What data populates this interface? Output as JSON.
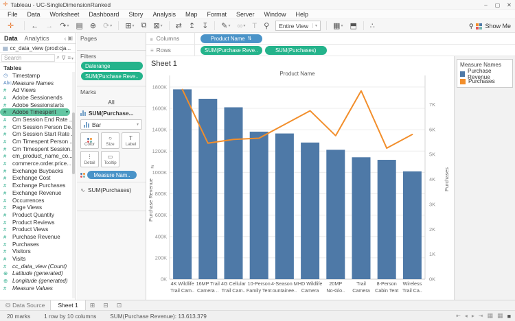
{
  "window": {
    "title": "Tableau - UC-SingleDimensionRanked"
  },
  "menu": {
    "items": [
      "File",
      "Data",
      "Worksheet",
      "Dashboard",
      "Story",
      "Analysis",
      "Map",
      "Format",
      "Server",
      "Window",
      "Help"
    ]
  },
  "toolbar": {
    "view_mode": "Entire View",
    "show_me": "Show Me"
  },
  "data_pane": {
    "tabs": [
      {
        "label": "Data"
      },
      {
        "label": "Analytics"
      }
    ],
    "datasource": "cc_data_view (prod:cja...",
    "tables_header": "Tables",
    "fields": [
      {
        "label": "Timestamp",
        "icon": "datetime"
      },
      {
        "label": "Measure Names",
        "icon": "abc",
        "italic": true
      },
      {
        "label": "Ad Views",
        "icon": "number"
      },
      {
        "label": "Adobe Sessionends",
        "icon": "number"
      },
      {
        "label": "Adobe Sessionstarts",
        "icon": "number"
      },
      {
        "label": "Adobe Timespent",
        "icon": "number",
        "selected": true
      },
      {
        "label": "Cm Session End Rate ...",
        "icon": "number"
      },
      {
        "label": "Cm Session Person De...",
        "icon": "number"
      },
      {
        "label": "Cm Session Start Rate ...",
        "icon": "number"
      },
      {
        "label": "Cm Timespent Person ...",
        "icon": "number"
      },
      {
        "label": "Cm Timespent Session...",
        "icon": "number"
      },
      {
        "label": "cm_product_name_co...",
        "icon": "number"
      },
      {
        "label": "commerce.order.price...",
        "icon": "number"
      },
      {
        "label": "Exchange Buybacks",
        "icon": "number"
      },
      {
        "label": "Exchange Cost",
        "icon": "number"
      },
      {
        "label": "Exchange Purchases",
        "icon": "number"
      },
      {
        "label": "Exchange Revenue",
        "icon": "number"
      },
      {
        "label": "Occurrences",
        "icon": "number"
      },
      {
        "label": "Page Views",
        "icon": "number"
      },
      {
        "label": "Product Quantity",
        "icon": "number"
      },
      {
        "label": "Product Reviews",
        "icon": "number"
      },
      {
        "label": "Product Views",
        "icon": "number"
      },
      {
        "label": "Purchase Revenue",
        "icon": "number"
      },
      {
        "label": "Purchases",
        "icon": "number"
      },
      {
        "label": "Visitors",
        "icon": "number"
      },
      {
        "label": "Visits",
        "icon": "number"
      },
      {
        "label": "cc_data_view (Count)",
        "icon": "number",
        "italic": true
      },
      {
        "label": "Latitude (generated)",
        "icon": "globe",
        "italic": true
      },
      {
        "label": "Longitude (generated)",
        "icon": "globe",
        "italic": true
      },
      {
        "label": "Measure Values",
        "icon": "number",
        "italic": true
      }
    ]
  },
  "search": {
    "placeholder": "Search"
  },
  "pages": {
    "label": "Pages"
  },
  "filters": {
    "label": "Filters",
    "pills": [
      "Daterange",
      "SUM(Purchase Reve.."
    ]
  },
  "marks": {
    "label": "Marks",
    "all": "All",
    "section1": "SUM(Purchase...",
    "type": "Bar",
    "buttons": [
      {
        "label": "Color",
        "icon": "color"
      },
      {
        "label": "Size",
        "icon": "size"
      },
      {
        "label": "Label",
        "icon": "label"
      },
      {
        "label": "Detail",
        "icon": "detail"
      },
      {
        "label": "Tooltip",
        "icon": "tooltip"
      }
    ],
    "color_pill": "Measure Nam..",
    "section2": "SUM(Purchases)"
  },
  "shelves": {
    "columns_label": "Columns",
    "rows_label": "Rows",
    "columns": [
      {
        "label": "Product Name",
        "type": "dimension",
        "sorted": true
      }
    ],
    "rows": [
      {
        "label": "SUM(Purchase Reve..",
        "type": "measure"
      },
      {
        "label": "SUM(Purchases)",
        "type": "measure"
      }
    ]
  },
  "sheet": {
    "title": "Sheet 1"
  },
  "chart_data": {
    "type": "bar",
    "title": "Sheet 1",
    "xlabel": "Product Name",
    "ylabel_left": "Purchase Revenue",
    "ylabel_right": "Purchases",
    "categories": [
      "4K Wildlife Trail Cam..",
      "16MP Trail Camera ..",
      "4G Cellular Trail Cam..",
      "10-Person Family Tent",
      "4-Season M ountainee..",
      "HD Wildlife Camera",
      "20MP No-Glo..",
      "Trail Camera",
      "8-Person Cabin Tent",
      "Wireless Trail Ca.."
    ],
    "categories_display": [
      [
        "4K Wildlife",
        "Trail Cam.."
      ],
      [
        "16MP Trail",
        "Camera .."
      ],
      [
        "4G Cellular",
        "Trail Cam.."
      ],
      [
        "10-Person",
        "Family Tent"
      ],
      [
        "4-Season M",
        "ountainee.."
      ],
      [
        "HD Wildlife",
        "Camera"
      ],
      [
        "20MP",
        "No-Glo.."
      ],
      [
        "Trail",
        "Camera"
      ],
      [
        "8-Person",
        "Cabin Tent"
      ],
      [
        "Wireless",
        "Trail Ca.."
      ]
    ],
    "series": [
      {
        "name": "Purchase Revenue",
        "type": "bar",
        "axis": "left",
        "color": "#4e79a7",
        "values": [
          1778000,
          1690000,
          1610000,
          1382000,
          1365000,
          1280000,
          1212000,
          1142000,
          1118000,
          1010000
        ]
      },
      {
        "name": "Purchases",
        "type": "line",
        "axis": "right",
        "color": "#f28e2b",
        "values": [
          7600,
          5450,
          5600,
          5650,
          6200,
          6750,
          5750,
          7550,
          5250,
          5800
        ]
      }
    ],
    "ylim_left": [
      0,
      1870000
    ],
    "ylim_right": [
      0,
      8000
    ],
    "ytick_step_left": 200000,
    "ytick_step_right": 1000,
    "yticks_left": [
      "0K",
      "200K",
      "400K",
      "600K",
      "800K",
      "1000K",
      "1200K",
      "1400K",
      "1600K",
      "1800K"
    ],
    "yticks_right": [
      "0K",
      "1K",
      "2K",
      "3K",
      "4K",
      "5K",
      "6K",
      "7K"
    ],
    "grid": true,
    "legend_position": "right"
  },
  "legend": {
    "title": "Measure Names",
    "entries": [
      {
        "label": "Purchase Revenue",
        "color": "#4e79a7"
      },
      {
        "label": "Purchases",
        "color": "#f28e2b"
      }
    ]
  },
  "bottom": {
    "datasource_tab": "Data Source",
    "sheet_tab": "Sheet 1"
  },
  "status": {
    "marks": "20 marks",
    "dims": "1 row by 10 columns",
    "agg": "SUM(Purchase Revenue): 13.613.379"
  },
  "colors": {
    "bar": "#4e79a7",
    "line": "#f28e2b",
    "green_pill": "#24b38b",
    "blue_pill": "#4a93c8"
  }
}
